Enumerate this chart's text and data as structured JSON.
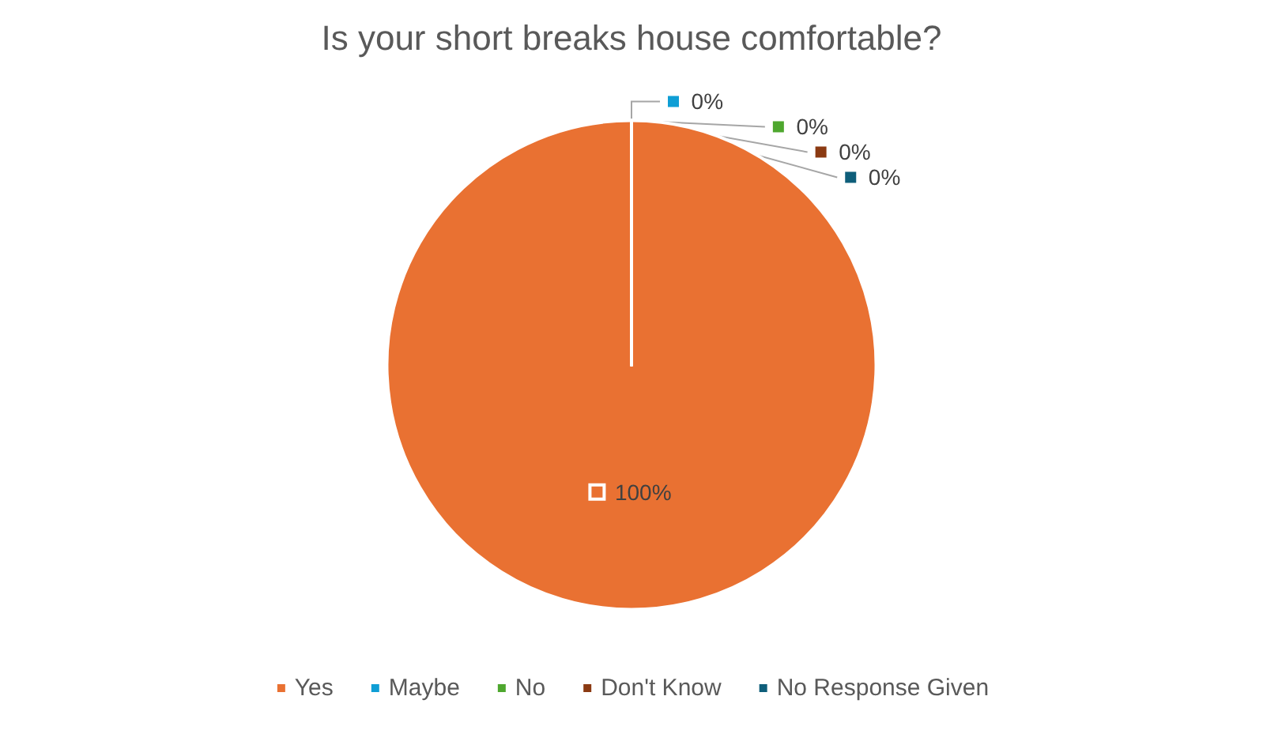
{
  "chart_data": {
    "type": "pie",
    "title": "Is your short breaks house comfortable?",
    "categories": [
      "Yes",
      "Maybe",
      "No",
      "Don't Know",
      "No Response Given"
    ],
    "values": [
      100,
      0,
      0,
      0,
      0
    ],
    "colors": [
      "#e97132",
      "#0f9ed5",
      "#4ea72e",
      "#8b3a12",
      "#0e5e7a"
    ],
    "value_labels": [
      "100%",
      "0%",
      "0%",
      "0%",
      "0%"
    ],
    "legend": "bottom"
  }
}
